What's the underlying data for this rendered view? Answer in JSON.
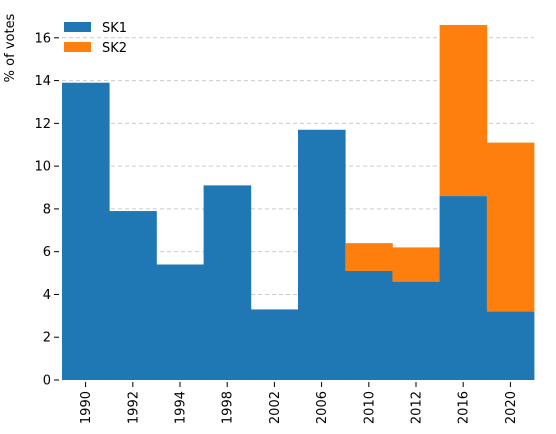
{
  "chart_data": {
    "type": "bar",
    "stacked": true,
    "categories": [
      "1990",
      "1992",
      "1994",
      "1998",
      "2002",
      "2006",
      "2010",
      "2012",
      "2016",
      "2020"
    ],
    "series": [
      {
        "name": "SK1",
        "color": "#1f77b4",
        "values": [
          13.9,
          7.9,
          5.4,
          9.1,
          3.3,
          11.7,
          5.1,
          4.6,
          8.6,
          3.2
        ]
      },
      {
        "name": "SK2",
        "color": "#ff7f0e",
        "values": [
          0,
          0,
          0,
          0,
          0,
          0,
          1.3,
          1.6,
          8.0,
          7.9
        ]
      }
    ],
    "ylabel": "% of votes",
    "xlabel": "",
    "ylim": [
      0,
      17.3
    ],
    "yticks": [
      0,
      2,
      4,
      6,
      8,
      10,
      12,
      14,
      16
    ],
    "grid": "horizontal dashed",
    "legend_position": "top-left",
    "x_tick_rotation": "vertical"
  }
}
